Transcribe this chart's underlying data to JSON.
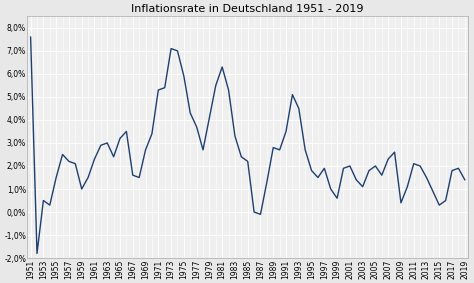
{
  "title": "Inflationsrate in Deutschland 1951 - 2019",
  "years": [
    1951,
    1952,
    1953,
    1954,
    1955,
    1956,
    1957,
    1958,
    1959,
    1960,
    1961,
    1962,
    1963,
    1964,
    1965,
    1966,
    1967,
    1968,
    1969,
    1970,
    1971,
    1972,
    1973,
    1974,
    1975,
    1976,
    1977,
    1978,
    1979,
    1980,
    1981,
    1982,
    1983,
    1984,
    1985,
    1986,
    1987,
    1988,
    1989,
    1990,
    1991,
    1992,
    1993,
    1994,
    1995,
    1996,
    1997,
    1998,
    1999,
    2000,
    2001,
    2002,
    2003,
    2004,
    2005,
    2006,
    2007,
    2008,
    2009,
    2010,
    2011,
    2012,
    2013,
    2014,
    2015,
    2016,
    2017,
    2018,
    2019
  ],
  "values": [
    7.6,
    -1.8,
    0.5,
    0.3,
    1.5,
    2.5,
    2.2,
    2.1,
    1.0,
    1.5,
    2.3,
    2.9,
    3.0,
    2.4,
    3.2,
    3.5,
    1.6,
    1.5,
    2.7,
    3.4,
    5.3,
    5.4,
    7.1,
    7.0,
    5.9,
    4.3,
    3.7,
    2.7,
    4.1,
    5.5,
    6.3,
    5.3,
    3.3,
    2.4,
    2.2,
    0.0,
    -0.1,
    1.3,
    2.8,
    2.7,
    3.5,
    5.1,
    4.5,
    2.7,
    1.8,
    1.5,
    1.9,
    1.0,
    0.6,
    1.9,
    2.0,
    1.4,
    1.1,
    1.8,
    2.0,
    1.6,
    2.3,
    2.6,
    0.4,
    1.1,
    2.1,
    2.0,
    1.5,
    0.9,
    0.3,
    0.5,
    1.8,
    1.9,
    1.4
  ],
  "line_color": "#1f3f6e",
  "line_width": 1.0,
  "bg_color": "#e8e8e8",
  "plot_bg_color": "#efefef",
  "grid_color": "#ffffff",
  "ylim": [
    -2.0,
    8.5
  ],
  "yticks": [
    -2.0,
    -1.0,
    0.0,
    1.0,
    2.0,
    3.0,
    4.0,
    5.0,
    6.0,
    7.0,
    8.0
  ],
  "ytick_labels": [
    "-2,0%",
    "-1,0%",
    "0,0%",
    "1,0%",
    "2,0%",
    "3,0%",
    "4,0%",
    "5,0%",
    "6,0%",
    "7,0%",
    "8,0%"
  ],
  "xtick_step": 2,
  "title_fontsize": 8,
  "tick_fontsize": 5.5
}
